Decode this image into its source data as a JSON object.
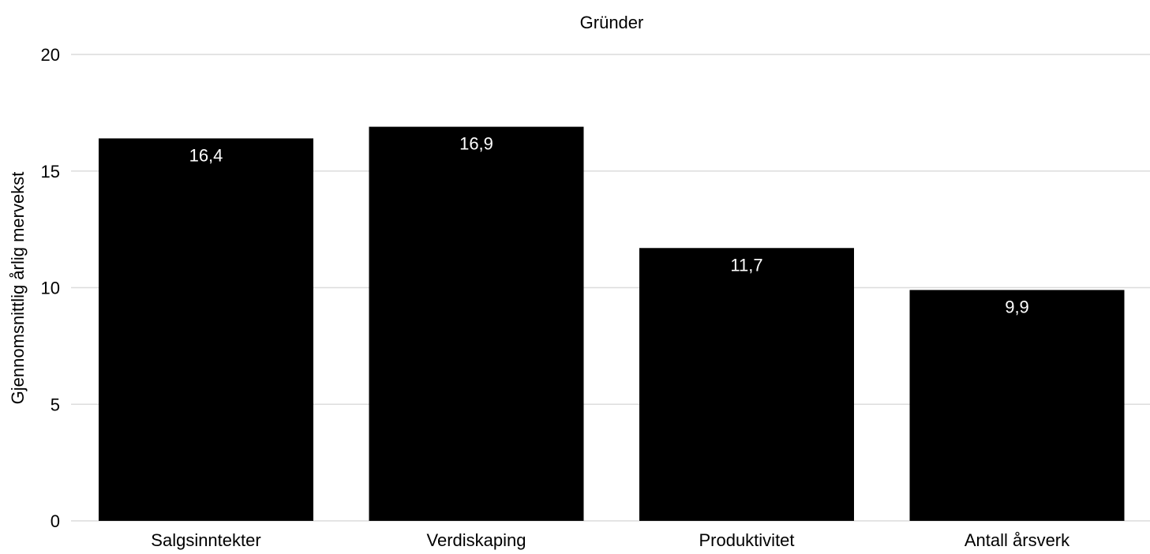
{
  "chart_data": {
    "type": "bar",
    "title": "Gründer",
    "xlabel": "",
    "ylabel": "Gjennomsnittlig årlig mervekst",
    "categories": [
      "Salgsinntekter",
      "Verdiskaping",
      "Produktivitet",
      "Antall årsverk"
    ],
    "values": [
      16.4,
      16.9,
      11.7,
      9.9
    ],
    "value_labels": [
      "16,4",
      "16,9",
      "11,7",
      "9,9"
    ],
    "ylim": [
      0,
      20
    ],
    "yticks": [
      0,
      5,
      10,
      15,
      20
    ],
    "grid": true,
    "legend": "none",
    "colors": {
      "bar": "#000000",
      "grid": "#dcdcdc",
      "value_label": "#ffffff",
      "text": "#000000"
    }
  }
}
